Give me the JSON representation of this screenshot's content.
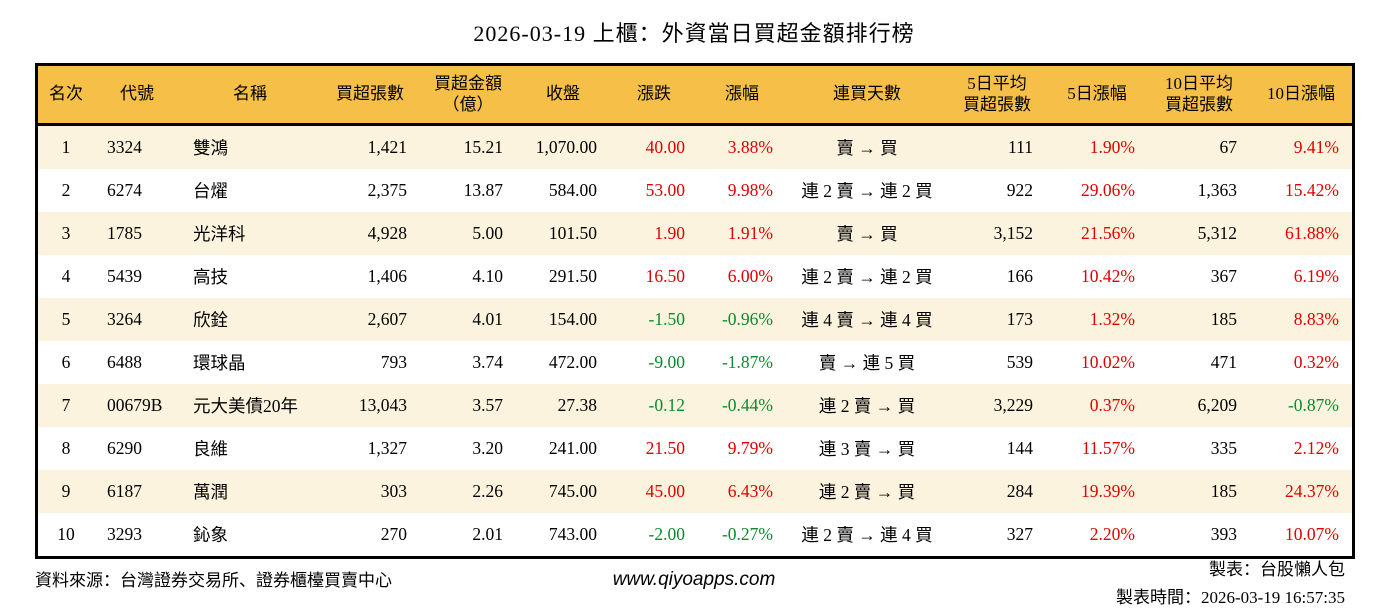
{
  "title": "2026-03-19 上櫃：外資當日買超金額排行榜",
  "colors": {
    "header_bg": "#f5bf48",
    "row_alt": "#fbf3dd",
    "up": "#e00000",
    "down": "#0a8a2e",
    "border": "#000000"
  },
  "table": {
    "columns": [
      {
        "key": "rank",
        "label_lines": [
          "名次"
        ]
      },
      {
        "key": "code",
        "label_lines": [
          "代號"
        ]
      },
      {
        "key": "name",
        "label_lines": [
          "名稱"
        ]
      },
      {
        "key": "buy_lots",
        "label_lines": [
          "買超張數"
        ]
      },
      {
        "key": "buy_amount",
        "label_lines": [
          "買超金額",
          "（億）"
        ]
      },
      {
        "key": "close",
        "label_lines": [
          "收盤"
        ]
      },
      {
        "key": "change",
        "label_lines": [
          "漲跌"
        ]
      },
      {
        "key": "change_pct",
        "label_lines": [
          "漲幅"
        ]
      },
      {
        "key": "streak",
        "label_lines": [
          "連買天數"
        ]
      },
      {
        "key": "avg5",
        "label_lines": [
          "5日平均",
          "買超張數"
        ]
      },
      {
        "key": "pct5",
        "label_lines": [
          "5日漲幅"
        ]
      },
      {
        "key": "avg10",
        "label_lines": [
          "10日平均",
          "買超張數"
        ]
      },
      {
        "key": "pct10",
        "label_lines": [
          "10日漲幅"
        ]
      }
    ],
    "rows": [
      [
        "1",
        "3324",
        "雙鴻",
        "1,421",
        "15.21",
        "1,070.00",
        "40.00",
        "3.88%",
        "賣 → 買",
        "111",
        "1.90%",
        "67",
        "9.41%"
      ],
      [
        "2",
        "6274",
        "台燿",
        "2,375",
        "13.87",
        "584.00",
        "53.00",
        "9.98%",
        "連 2 賣 → 連 2 買",
        "922",
        "29.06%",
        "1,363",
        "15.42%"
      ],
      [
        "3",
        "1785",
        "光洋科",
        "4,928",
        "5.00",
        "101.50",
        "1.90",
        "1.91%",
        "賣 → 買",
        "3,152",
        "21.56%",
        "5,312",
        "61.88%"
      ],
      [
        "4",
        "5439",
        "高技",
        "1,406",
        "4.10",
        "291.50",
        "16.50",
        "6.00%",
        "連 2 賣 → 連 2 買",
        "166",
        "10.42%",
        "367",
        "6.19%"
      ],
      [
        "5",
        "3264",
        "欣銓",
        "2,607",
        "4.01",
        "154.00",
        "-1.50",
        "-0.96%",
        "連 4 賣 → 連 4 買",
        "173",
        "1.32%",
        "185",
        "8.83%"
      ],
      [
        "6",
        "6488",
        "環球晶",
        "793",
        "3.74",
        "472.00",
        "-9.00",
        "-1.87%",
        "賣 → 連 5 買",
        "539",
        "10.02%",
        "471",
        "0.32%"
      ],
      [
        "7",
        "00679B",
        "元大美債20年",
        "13,043",
        "3.57",
        "27.38",
        "-0.12",
        "-0.44%",
        "連 2 賣 → 買",
        "3,229",
        "0.37%",
        "6,209",
        "-0.87%"
      ],
      [
        "8",
        "6290",
        "良維",
        "1,327",
        "3.20",
        "241.00",
        "21.50",
        "9.79%",
        "連 3 賣 → 買",
        "144",
        "11.57%",
        "335",
        "2.12%"
      ],
      [
        "9",
        "6187",
        "萬潤",
        "303",
        "2.26",
        "745.00",
        "45.00",
        "6.43%",
        "連 2 賣 → 買",
        "284",
        "19.39%",
        "185",
        "24.37%"
      ],
      [
        "10",
        "3293",
        "鈊象",
        "270",
        "2.01",
        "743.00",
        "-2.00",
        "-0.27%",
        "連 2 賣 → 連 4 買",
        "327",
        "2.20%",
        "393",
        "10.07%"
      ]
    ]
  },
  "footer": {
    "source": "資料來源：台灣證券交易所、證券櫃檯買賣中心",
    "website": "www.qiyoapps.com",
    "made_by": "製表：台股懶人包",
    "made_time": "製表時間：2026-03-19 16:57:35"
  }
}
